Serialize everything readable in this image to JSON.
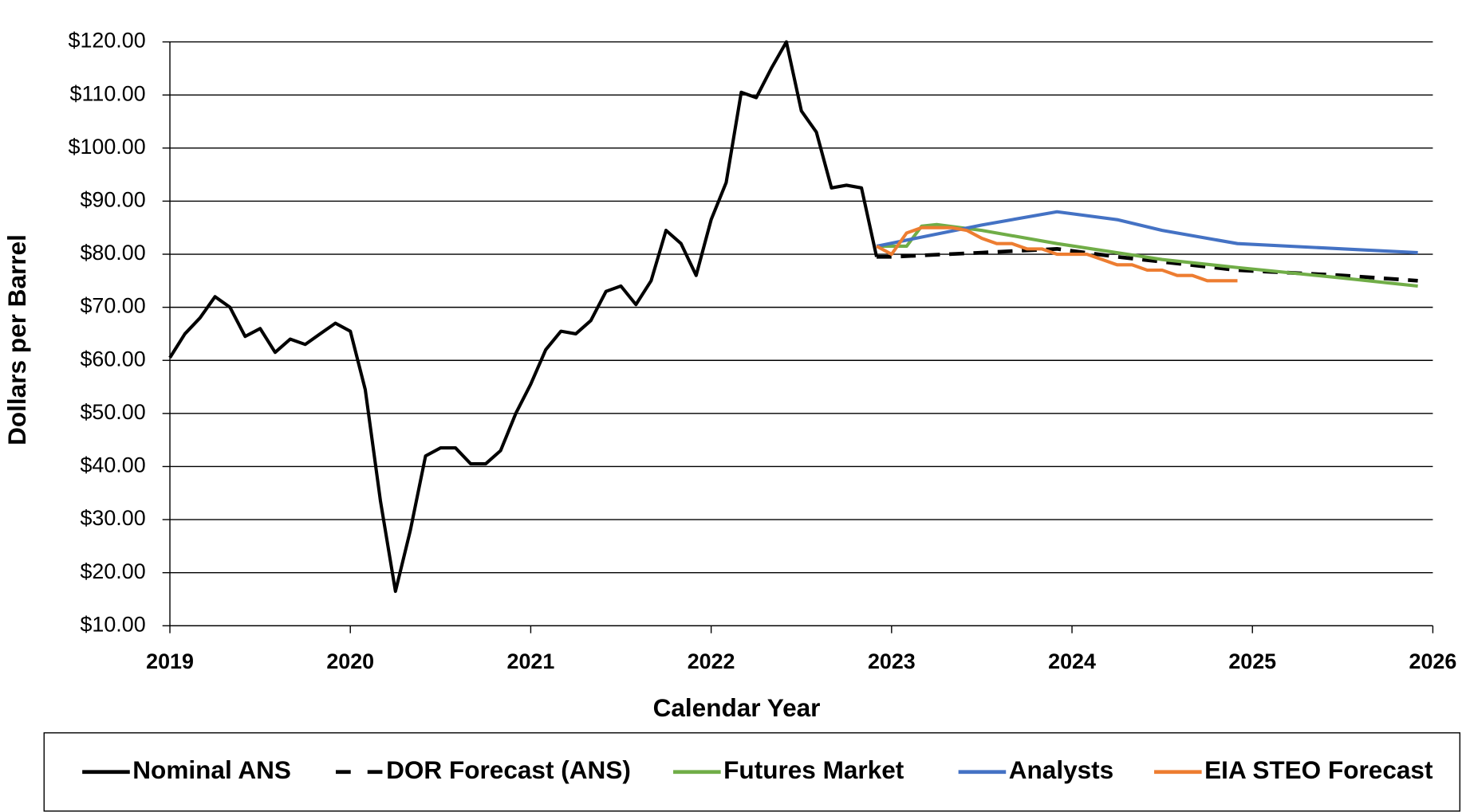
{
  "chart_data": {
    "type": "line",
    "x_label": "Calendar Year",
    "y_label": "Dollars per Barrel",
    "xlim": [
      2019,
      2026
    ],
    "xticks": [
      2019,
      2020,
      2021,
      2022,
      2023,
      2024,
      2025,
      2026
    ],
    "ylim": [
      10,
      120
    ],
    "yticks": [
      {
        "value": 10,
        "label": "$10.00"
      },
      {
        "value": 20,
        "label": "$20.00"
      },
      {
        "value": 30,
        "label": "$30.00"
      },
      {
        "value": 40,
        "label": "$40.00"
      },
      {
        "value": 50,
        "label": "$50.00"
      },
      {
        "value": 60,
        "label": "$60.00"
      },
      {
        "value": 70,
        "label": "$70.00"
      },
      {
        "value": 80,
        "label": "$80.00"
      },
      {
        "value": 90,
        "label": "$90.00"
      },
      {
        "value": 100,
        "label": "$100.00"
      },
      {
        "value": 110,
        "label": "$110.00"
      },
      {
        "value": 120,
        "label": "$120.00"
      }
    ],
    "grid": true,
    "legend": "bottom",
    "series": [
      {
        "name": "Nominal ANS",
        "color": "#000000",
        "dashed": false,
        "x": [
          2019,
          2019.083,
          2019.167,
          2019.25,
          2019.333,
          2019.417,
          2019.5,
          2019.583,
          2019.667,
          2019.75,
          2019.833,
          2019.917,
          2020,
          2020.083,
          2020.167,
          2020.25,
          2020.333,
          2020.417,
          2020.5,
          2020.583,
          2020.667,
          2020.75,
          2020.833,
          2020.917,
          2021,
          2021.083,
          2021.167,
          2021.25,
          2021.333,
          2021.417,
          2021.5,
          2021.583,
          2021.667,
          2021.75,
          2021.833,
          2021.917,
          2022,
          2022.083,
          2022.167,
          2022.25,
          2022.333,
          2022.417,
          2022.5,
          2022.583,
          2022.667,
          2022.75,
          2022.833,
          2022.917
        ],
        "values": [
          60.5,
          65,
          68,
          72,
          70,
          64.5,
          66,
          61.5,
          64,
          63,
          65,
          67,
          65.5,
          54.5,
          33.5,
          16.5,
          28,
          42,
          43.5,
          43.5,
          40.5,
          40.5,
          43,
          50,
          55.5,
          62,
          65.5,
          65,
          67.5,
          73,
          74,
          70.5,
          75,
          84.5,
          82,
          76,
          86.5,
          93.5,
          110.5,
          109.5,
          115,
          120,
          107,
          103,
          92.5,
          93,
          92.5,
          79.5
        ]
      },
      {
        "name": "DOR Forecast (ANS)",
        "color": "#000000",
        "dashed": true,
        "x": [
          2022.917,
          2023,
          2023.5,
          2023.917,
          2024.25,
          2024.917,
          2025.5,
          2025.917
        ],
        "values": [
          79.5,
          79.5,
          80.3,
          81,
          79.5,
          77,
          76,
          75
        ]
      },
      {
        "name": "Futures Market",
        "color": "#70ad47",
        "dashed": false,
        "x": [
          2022.917,
          2023.083,
          2023.167,
          2023.25,
          2023.5,
          2023.917,
          2024.5,
          2024.917,
          2025.5,
          2025.917
        ],
        "values": [
          81.5,
          81.5,
          85.3,
          85.6,
          84.5,
          82,
          79,
          77.5,
          75.5,
          74
        ]
      },
      {
        "name": "Analysts",
        "color": "#4472c4",
        "dashed": false,
        "x": [
          2022.917,
          2023.5,
          2023.917,
          2024.25,
          2024.5,
          2024.917,
          2025.917
        ],
        "values": [
          81.5,
          85.5,
          88,
          86.5,
          84.5,
          82,
          80.3
        ]
      },
      {
        "name": "EIA STEO Forecast",
        "color": "#ed7d31",
        "dashed": false,
        "x": [
          2022.917,
          2023,
          2023.083,
          2023.167,
          2023.25,
          2023.333,
          2023.417,
          2023.5,
          2023.583,
          2023.667,
          2023.75,
          2023.833,
          2023.917,
          2024,
          2024.083,
          2024.167,
          2024.25,
          2024.333,
          2024.417,
          2024.5,
          2024.583,
          2024.667,
          2024.75,
          2024.833,
          2024.917
        ],
        "values": [
          81.5,
          80,
          84,
          85,
          85,
          85,
          84.5,
          83,
          82,
          82,
          81,
          81,
          80,
          80,
          80,
          79,
          78,
          78,
          77,
          77,
          76,
          76,
          75,
          75,
          75
        ]
      }
    ]
  }
}
